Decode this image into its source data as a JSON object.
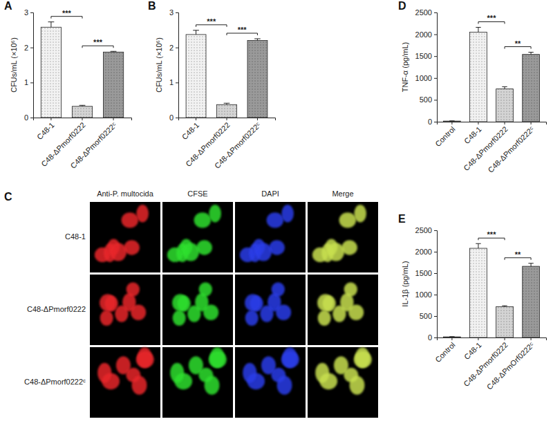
{
  "chart_data": [
    {
      "type": "bar",
      "title": "A",
      "ylabel": "CFUs/mL (×10⁶)",
      "categories": [
        "C48-1",
        "C48-ΔPmorf0222",
        "C48-ΔPmorf0222ᶜ"
      ],
      "values": [
        2.58,
        0.32,
        1.87
      ],
      "errors": [
        0.15,
        0.03,
        0.02
      ],
      "colors": [
        "#f2f2f2",
        "#d4d4d4",
        "#9a9a9a"
      ],
      "ylim": [
        0,
        3
      ],
      "yticks": [
        0,
        1,
        2,
        3
      ],
      "annotations": [
        {
          "between": [
            "C48-1",
            "C48-ΔPmorf0222"
          ],
          "text": "***"
        },
        {
          "between": [
            "C48-ΔPmorf0222",
            "C48-ΔPmorf0222ᶜ"
          ],
          "text": "***"
        }
      ]
    },
    {
      "type": "bar",
      "title": "B",
      "ylabel": "CFUs/mL (×10⁶)",
      "categories": [
        "C48-1",
        "C48-ΔPmorf0222",
        "C48-ΔPmorf0222ᶜ"
      ],
      "values": [
        2.37,
        0.37,
        2.2
      ],
      "errors": [
        0.12,
        0.04,
        0.05
      ],
      "colors": [
        "#f2f2f2",
        "#d4d4d4",
        "#9a9a9a"
      ],
      "ylim": [
        0,
        3
      ],
      "yticks": [
        0,
        1,
        2,
        3
      ],
      "annotations": [
        {
          "between": [
            "C48-1",
            "C48-ΔPmorf0222"
          ],
          "text": "***"
        },
        {
          "between": [
            "C48-ΔPmorf0222",
            "C48-ΔPmorf0222ᶜ"
          ],
          "text": "***"
        }
      ]
    },
    {
      "type": "bar",
      "title": "D",
      "ylabel": "TNF-α (pg/mL)",
      "categories": [
        "Control",
        "C48-1",
        "C48-ΔPmorf0222",
        "C48-ΔPmorf0222ᶜ"
      ],
      "values": [
        15,
        2050,
        750,
        1540
      ],
      "errors": [
        5,
        110,
        50,
        50
      ],
      "colors": [
        "#ffffff",
        "#f2f2f2",
        "#d4d4d4",
        "#9a9a9a"
      ],
      "ylim": [
        0,
        2500
      ],
      "yticks": [
        0,
        500,
        1000,
        1500,
        2000,
        2500
      ],
      "annotations": [
        {
          "between": [
            "C48-1",
            "C48-ΔPmorf0222"
          ],
          "text": "***"
        },
        {
          "between": [
            "C48-ΔPmorf0222",
            "C48-ΔPmorf0222ᶜ"
          ],
          "text": "**"
        }
      ]
    },
    {
      "type": "bar",
      "title": "E",
      "ylabel": "IL-1β (pg/mL)",
      "categories": [
        "Control",
        "C48-1",
        "C48-ΔPmorf0222",
        "C48-ΔPmOrf0222ᶜ"
      ],
      "values": [
        15,
        2080,
        720,
        1660
      ],
      "errors": [
        5,
        110,
        20,
        70
      ],
      "colors": [
        "#ffffff",
        "#f2f2f2",
        "#d4d4d4",
        "#9a9a9a"
      ],
      "ylim": [
        0,
        2500
      ],
      "yticks": [
        0,
        500,
        1000,
        1500,
        2000,
        2500
      ],
      "annotations": [
        {
          "between": [
            "C48-1",
            "C48-ΔPmorf0222"
          ],
          "text": "***"
        },
        {
          "between": [
            "C48-ΔPmorf0222",
            "C48-ΔPmOrf0222ᶜ"
          ],
          "text": "**"
        }
      ]
    }
  ],
  "image_grid": {
    "title": "C",
    "columns": [
      {
        "label": "Anti-P. multocida",
        "color": "#e8262a"
      },
      {
        "label": "CFSE",
        "color": "#2ee02e"
      },
      {
        "label": "DAPI",
        "color": "#2a3ce8"
      },
      {
        "label": "Merge",
        "color": "#c8e050"
      }
    ],
    "rows": [
      "C48-1",
      "C48-ΔPmorf0222",
      "C48-ΔPmorf0222ᶜ"
    ]
  }
}
